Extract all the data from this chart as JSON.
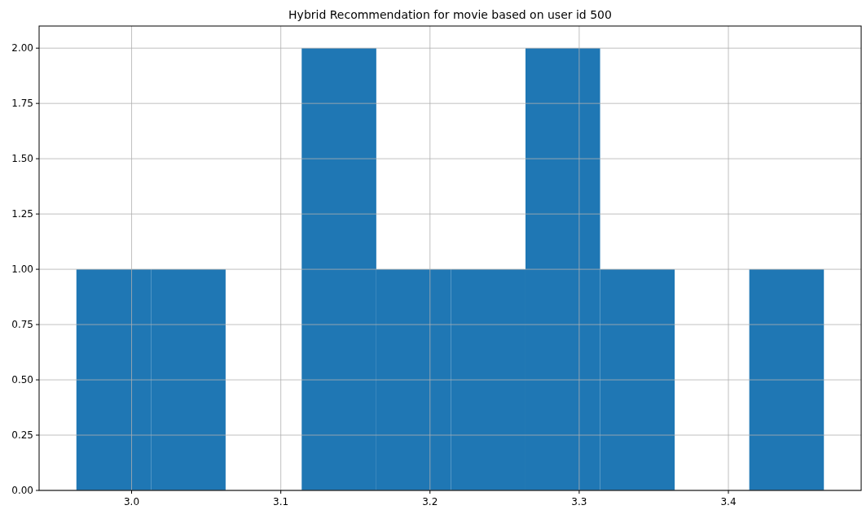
{
  "chart_data": {
    "type": "histogram",
    "title": "Hybrid Recommendation for movie based on user id 500",
    "bins": [
      2.963,
      3.013,
      3.063,
      3.114,
      3.164,
      3.214,
      3.264,
      3.314,
      3.364,
      3.414,
      3.464
    ],
    "values": [
      1,
      1,
      0,
      2,
      1,
      1,
      2,
      1,
      0,
      1
    ],
    "color": "#1f77b4",
    "xlim": [
      2.938,
      3.489
    ],
    "xticks": [
      {
        "value": 3.0,
        "label": "3.0"
      },
      {
        "value": 3.1,
        "label": "3.1"
      },
      {
        "value": 3.2,
        "label": "3.2"
      },
      {
        "value": 3.3,
        "label": "3.3"
      },
      {
        "value": 3.4,
        "label": "3.4"
      }
    ],
    "ylim": [
      0,
      2.1
    ],
    "yticks": [
      {
        "value": 0,
        "label": "0.00"
      },
      {
        "value": 0.25,
        "label": "0.25"
      },
      {
        "value": 0.5,
        "label": "0.50"
      },
      {
        "value": 0.75,
        "label": "0.75"
      },
      {
        "value": 1,
        "label": "1.00"
      },
      {
        "value": 1.25,
        "label": "1.25"
      },
      {
        "value": 1.5,
        "label": "1.50"
      },
      {
        "value": 1.75,
        "label": "1.75"
      },
      {
        "value": 2,
        "label": "2.00"
      }
    ],
    "grid": true
  }
}
